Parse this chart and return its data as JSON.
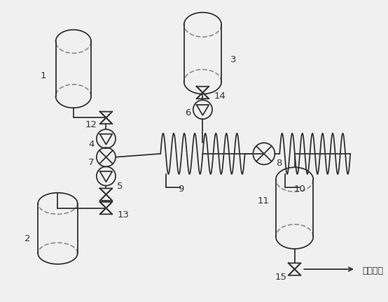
{
  "bg_color": "#f0f0f0",
  "line_color": "#333333",
  "fig_width": 5.54,
  "fig_height": 4.32,
  "dpi": 100
}
